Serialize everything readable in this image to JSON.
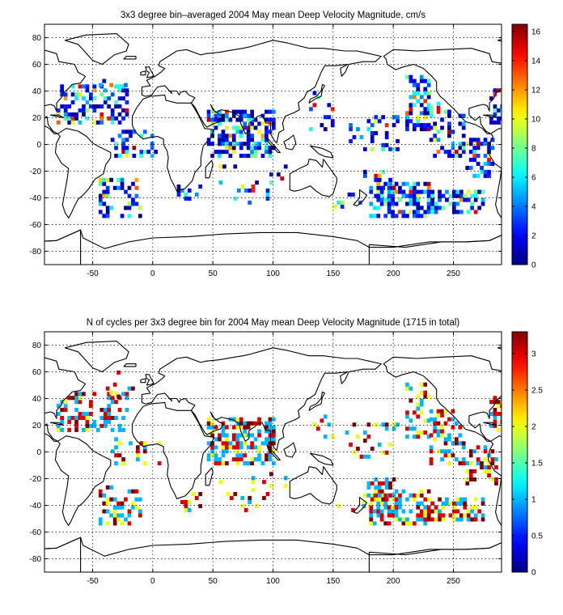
{
  "panels": [
    {
      "title": "3x3 degree bin–averaged 2004 May mean Deep Velocity Magnitude, cm/s",
      "xticks": [
        -50,
        0,
        50,
        100,
        150,
        200,
        250
      ],
      "yticks": [
        -80,
        -60,
        -40,
        -20,
        0,
        20,
        40,
        60,
        80
      ],
      "colorbar_ticks": [
        "0",
        "2",
        "4",
        "6",
        "8",
        "10",
        "12",
        "14",
        "16"
      ],
      "colorbar_values": [
        0,
        2,
        4,
        6,
        8,
        10,
        12,
        14,
        16
      ],
      "colorbar_range": [
        0,
        16.5
      ],
      "colormap": "jet",
      "seed": 7
    },
    {
      "title": "N of cycles per 3x3 degree bin for 2004 May mean Deep Velocity Magnitude (1715 in total)",
      "xticks": [
        -50,
        0,
        50,
        100,
        150,
        200,
        250
      ],
      "yticks": [
        -80,
        -60,
        -40,
        -20,
        0,
        20,
        40,
        60,
        80
      ],
      "colorbar_ticks": [
        "0",
        "0.5",
        "1",
        "1.5",
        "2",
        "2.5",
        "3"
      ],
      "colorbar_values": [
        0,
        0.5,
        1,
        1.5,
        2,
        2.5,
        3
      ],
      "colorbar_range": [
        0,
        3.3
      ],
      "colormap": "jet",
      "seed": 13
    }
  ],
  "map": {
    "lon_range": [
      -90,
      290
    ],
    "lat_range": [
      -90,
      90
    ],
    "bin_size_deg": 3,
    "grid": "dotted",
    "basemap": "coastlines"
  }
}
